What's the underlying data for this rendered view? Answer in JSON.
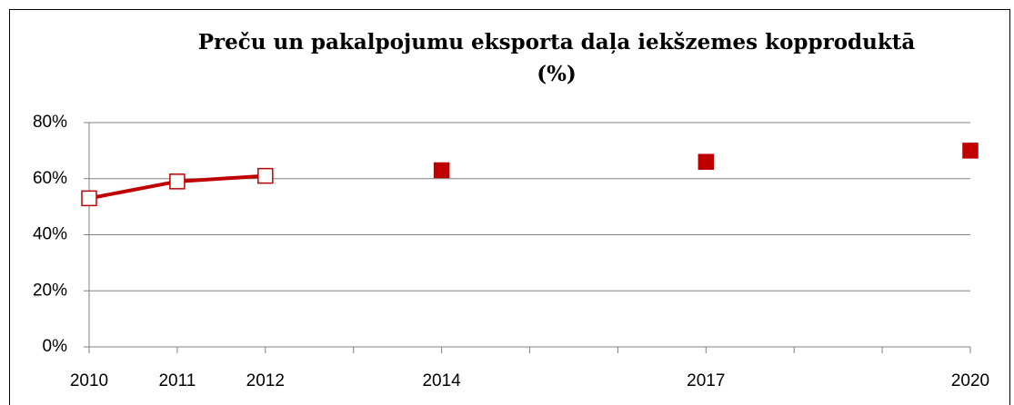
{
  "chart_data": {
    "type": "line",
    "title": [
      "Preču un pakalpojumu eksporta daļa iekšzemes kopproduktā",
      "(%)"
    ],
    "categories": [
      "2010",
      "2011",
      "2012",
      null,
      "2014",
      null,
      null,
      "2017",
      null,
      null,
      "2020"
    ],
    "series": [
      {
        "color": "#c00000",
        "line": true,
        "marker_fill": "#ffffff",
        "values": [
          53,
          59,
          61,
          null,
          null,
          null,
          null,
          null,
          null,
          null,
          null
        ]
      },
      {
        "color": "#c00000",
        "line": false,
        "marker_fill": "#c00000",
        "values": [
          null,
          null,
          null,
          null,
          63,
          null,
          null,
          66,
          null,
          null,
          70
        ]
      }
    ],
    "ylim": [
      0,
      80
    ],
    "yticks": [
      {
        "value": 0,
        "label": "0%"
      },
      {
        "value": 20,
        "label": "20%"
      },
      {
        "value": 40,
        "label": "40%"
      },
      {
        "value": 60,
        "label": "60%"
      },
      {
        "value": 80,
        "label": "80%"
      }
    ],
    "grid": true
  }
}
